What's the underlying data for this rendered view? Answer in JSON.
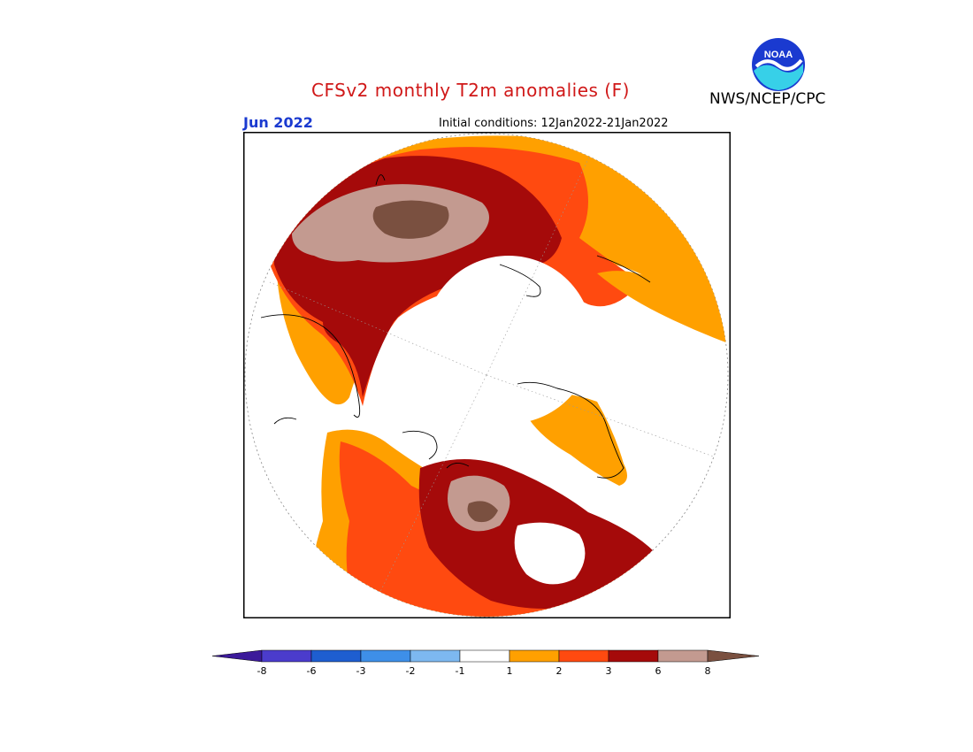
{
  "title": "CFSv2 monthly T2m anomalies (F)",
  "agency": "NWS/NCEP/CPC",
  "logo_text": "NOAA",
  "month": "Jun 2022",
  "initial_conditions": "Initial conditions: 12Jan2022-21Jan2022",
  "colorbar": {
    "colors": [
      "#3c1a9a",
      "#4b3ccc",
      "#1e5ed0",
      "#3e8fe8",
      "#7db8f0",
      "#ffffff",
      "#ffa000",
      "#ff4a10",
      "#a50a0a",
      "#c39a90",
      "#7a5040"
    ],
    "tick_labels": [
      "-8",
      "-6",
      "-3",
      "-2",
      "-1",
      "1",
      "2",
      "3",
      "6",
      "8"
    ]
  }
}
